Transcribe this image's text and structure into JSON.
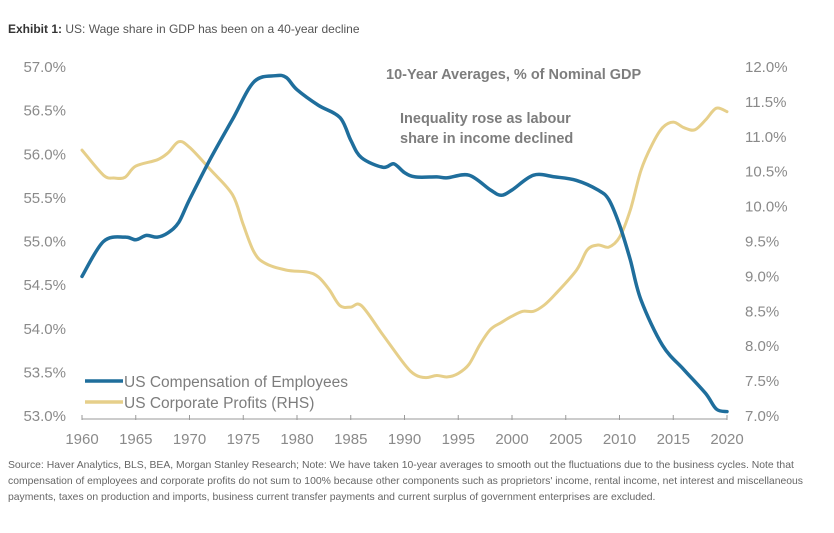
{
  "header": {
    "exhibit_label": "Exhibit 1:",
    "title": "US: Wage share in GDP has been on a 40-year decline"
  },
  "footnote": "Source: Haver Analytics, BLS, BEA, Morgan Stanley Research; Note: We have taken 10-year averages to smooth out the fluctuations due to the business cycles. Note that compensation of employees and corporate profits do not sum to 100% because other components such as proprietors' income, rental income, net interest and miscellaneous payments, taxes on production and imports, business current transfer payments and current surplus of government enterprises are excluded.",
  "chart_data": {
    "type": "line",
    "title": "10-Year Averages, % of Nominal GDP",
    "annotation": [
      "Inequality rose as labour",
      "share in income declined"
    ],
    "xlabel": "",
    "ylabel": "",
    "xlim": [
      1960,
      2020
    ],
    "x_ticks": [
      "1960",
      "1965",
      "1970",
      "1975",
      "1980",
      "1985",
      "1990",
      "1995",
      "2000",
      "2005",
      "2010",
      "2015",
      "2020"
    ],
    "ylim_left": [
      53.0,
      57.0
    ],
    "y_ticks_left": [
      "57.0%",
      "56.5%",
      "56.0%",
      "55.5%",
      "55.0%",
      "54.5%",
      "54.0%",
      "53.5%",
      "53.0%"
    ],
    "ylim_right": [
      7.0,
      12.0
    ],
    "y_ticks_right": [
      "12.0%",
      "11.5%",
      "11.0%",
      "10.5%",
      "10.0%",
      "9.5%",
      "9.0%",
      "8.5%",
      "8.0%",
      "7.5%",
      "7.0%"
    ],
    "grid": false,
    "legend_position": "bottom-left",
    "series": [
      {
        "name": "US Compensation of Employees",
        "axis": "left",
        "color": "#1f6e9c",
        "x": [
          1960,
          1962,
          1964,
          1965,
          1966,
          1967,
          1968,
          1969,
          1970,
          1972,
          1974,
          1976,
          1978,
          1979,
          1980,
          1982,
          1984,
          1985,
          1986,
          1988,
          1989,
          1990,
          1991,
          1993,
          1994,
          1996,
          1998,
          1999,
          2000,
          2002,
          2004,
          2006,
          2008,
          2009,
          2010,
          2011,
          2012,
          2014,
          2016,
          2018,
          2019,
          2020
        ],
        "values": [
          54.6,
          55.0,
          55.05,
          55.02,
          55.07,
          55.05,
          55.1,
          55.22,
          55.48,
          55.96,
          56.4,
          56.83,
          56.9,
          56.88,
          56.74,
          56.56,
          56.42,
          56.16,
          55.96,
          55.85,
          55.89,
          55.79,
          55.74,
          55.74,
          55.73,
          55.76,
          55.59,
          55.53,
          55.59,
          55.76,
          55.74,
          55.7,
          55.59,
          55.48,
          55.19,
          54.79,
          54.33,
          53.81,
          53.53,
          53.26,
          53.08,
          53.05
        ]
      },
      {
        "name": "US Corporate Profits (RHS)",
        "axis": "right",
        "color": "#e6cf8a",
        "x": [
          1960,
          1962,
          1963,
          1964,
          1965,
          1967,
          1968,
          1969,
          1970,
          1972,
          1974,
          1975,
          1976,
          1977,
          1979,
          1981,
          1982,
          1983,
          1984,
          1985,
          1986,
          1988,
          1990,
          1991,
          1992,
          1993,
          1994,
          1995,
          1996,
          1997,
          1998,
          1999,
          2000,
          2001,
          2002,
          2003,
          2004,
          2006,
          2007,
          2008,
          2009,
          2010,
          2011,
          2012,
          2013,
          2014,
          2015,
          2016,
          2017,
          2018,
          2019,
          2020
        ],
        "values": [
          10.81,
          10.45,
          10.41,
          10.42,
          10.58,
          10.67,
          10.77,
          10.93,
          10.85,
          10.52,
          10.17,
          9.74,
          9.35,
          9.19,
          9.09,
          9.06,
          8.99,
          8.81,
          8.58,
          8.56,
          8.58,
          8.16,
          7.74,
          7.59,
          7.55,
          7.58,
          7.56,
          7.61,
          7.74,
          8.02,
          8.24,
          8.34,
          8.43,
          8.5,
          8.5,
          8.59,
          8.74,
          9.09,
          9.38,
          9.45,
          9.42,
          9.56,
          9.95,
          10.52,
          10.88,
          11.13,
          11.21,
          11.13,
          11.1,
          11.24,
          11.41,
          11.36
        ]
      }
    ]
  }
}
